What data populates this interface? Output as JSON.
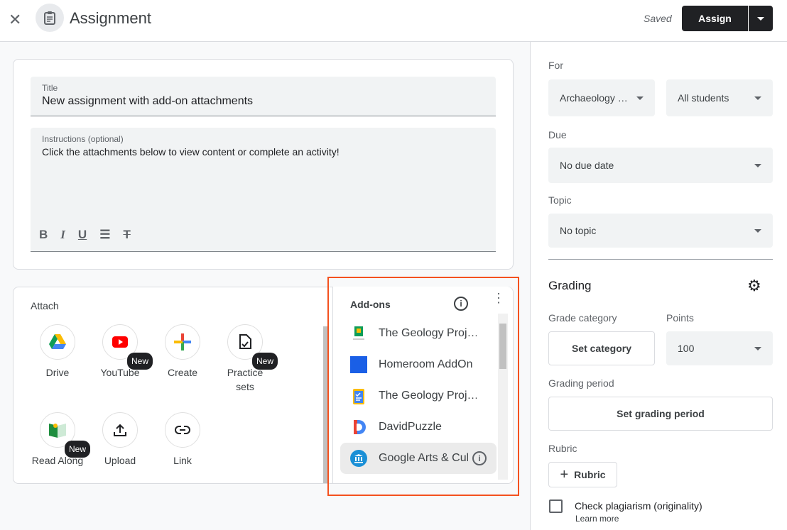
{
  "header": {
    "title": "Assignment",
    "status": "Saved",
    "assign_label": "Assign"
  },
  "form": {
    "title_label": "Title",
    "title_value": "New assignment with add-on attachments",
    "instructions_label": "Instructions (optional)",
    "instructions_value": "Click the attachments below to view content or complete an activity!"
  },
  "attach": {
    "heading": "Attach",
    "new_badge": "New",
    "items": [
      {
        "label": "Drive",
        "icon": "google-drive-icon"
      },
      {
        "label": "YouTube",
        "icon": "youtube-icon",
        "new": true
      },
      {
        "label": "Create",
        "icon": "plus-icon"
      },
      {
        "label": "Practice sets",
        "icon": "practice-sets-icon",
        "new": true
      },
      {
        "label": "Read Along",
        "icon": "read-along-icon",
        "new": true
      },
      {
        "label": "Upload",
        "icon": "upload-icon"
      },
      {
        "label": "Link",
        "icon": "link-icon"
      }
    ]
  },
  "addons": {
    "heading": "Add-ons",
    "items": [
      {
        "label": "The Geology Proj…",
        "icon": "classroom-icon"
      },
      {
        "label": "Homeroom AddOn",
        "icon": "blue-square-icon",
        "color": "#1a5fe6"
      },
      {
        "label": "The Geology Proj…",
        "icon": "clipboard-icon"
      },
      {
        "label": "DavidPuzzle",
        "icon": "davidpuzzle-icon"
      },
      {
        "label": "Google Arts & Culture",
        "icon": "arts-culture-icon",
        "hovered": true
      }
    ]
  },
  "sidebar": {
    "for_label": "For",
    "class_value": "Archaeology …",
    "students_value": "All students",
    "due_label": "Due",
    "due_value": "No due date",
    "topic_label": "Topic",
    "topic_value": "No topic",
    "grading_heading": "Grading",
    "grade_category_label": "Grade category",
    "set_category": "Set category",
    "points_label": "Points",
    "points_value": "100",
    "grading_period_label": "Grading period",
    "set_grading_period": "Set grading period",
    "rubric_label": "Rubric",
    "rubric_button": "Rubric",
    "plagiarism_label": "Check plagiarism (originality)",
    "learn_more": "Learn more",
    "plagiarism_checked": false
  },
  "colors": {
    "highlight": "#f4511e",
    "primary_button": "#202124"
  }
}
